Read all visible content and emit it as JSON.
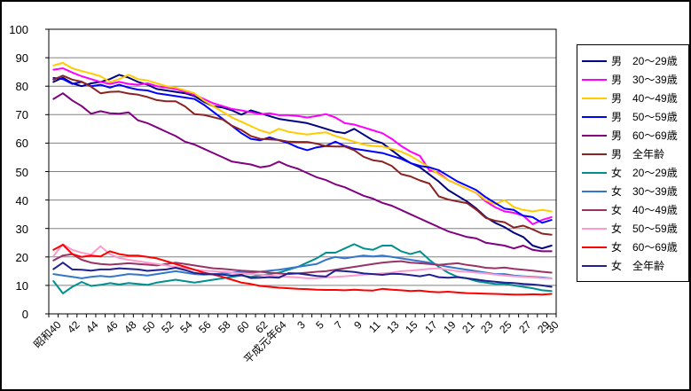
{
  "chart_data": {
    "type": "line",
    "title": "",
    "xlabel": "",
    "ylabel": "",
    "ylim": [
      0,
      100
    ],
    "grid": true,
    "legend_position": "right",
    "years": [
      1965,
      1966,
      1967,
      1968,
      1969,
      1970,
      1971,
      1972,
      1973,
      1974,
      1975,
      1976,
      1977,
      1978,
      1979,
      1980,
      1981,
      1982,
      1983,
      1984,
      1985,
      1986,
      1987,
      1988,
      1989,
      1990,
      1991,
      1992,
      1993,
      1994,
      1995,
      1996,
      1997,
      1998,
      1999,
      2000,
      2001,
      2002,
      2003,
      2004,
      2005,
      2006,
      2007,
      2008,
      2009,
      2010,
      2011,
      2012,
      2013,
      2014,
      2015,
      2016,
      2017,
      2018
    ],
    "y_axis": {
      "min": 0,
      "max": 100,
      "step": 10,
      "tick_labels": [
        "100",
        "90",
        "80",
        "70",
        "60",
        "50",
        "40",
        "30",
        "20",
        "10",
        "0"
      ]
    },
    "x_axis_tick_labels": [
      {
        "text": "昭和40",
        "index": 0
      },
      {
        "text": "42",
        "index": 2
      },
      {
        "text": "44",
        "index": 4
      },
      {
        "text": "46",
        "index": 6
      },
      {
        "text": "48",
        "index": 8
      },
      {
        "text": "50",
        "index": 10
      },
      {
        "text": "52",
        "index": 12
      },
      {
        "text": "54",
        "index": 14
      },
      {
        "text": "56",
        "index": 16
      },
      {
        "text": "58",
        "index": 18
      },
      {
        "text": "60",
        "index": 20
      },
      {
        "text": "62",
        "index": 22
      },
      {
        "text": "平成元年64",
        "index": 24
      },
      {
        "text": "3",
        "index": 26
      },
      {
        "text": "5",
        "index": 28
      },
      {
        "text": "7",
        "index": 30
      },
      {
        "text": "9",
        "index": 32
      },
      {
        "text": "11",
        "index": 34
      },
      {
        "text": "13",
        "index": 36
      },
      {
        "text": "15",
        "index": 38
      },
      {
        "text": "17",
        "index": 40
      },
      {
        "text": "19",
        "index": 42
      },
      {
        "text": "21",
        "index": 44
      },
      {
        "text": "23",
        "index": 46
      },
      {
        "text": "25",
        "index": 48
      },
      {
        "text": "27",
        "index": 50
      },
      {
        "text": "29",
        "index": 52
      },
      {
        "text": "30",
        "index": 53
      }
    ],
    "series": [
      {
        "id": "male-20s",
        "label": "男　20〜29歳",
        "color": "#000080",
        "values": [
          81.5,
          83.0,
          81.0,
          80.0,
          81.0,
          81.5,
          82.5,
          84.0,
          83.0,
          81.5,
          80.5,
          79.0,
          78.5,
          78.0,
          77.5,
          76.5,
          74.5,
          73.0,
          72.5,
          71.5,
          70.0,
          71.5,
          70.5,
          69.5,
          68.5,
          68.0,
          67.5,
          67.0,
          66.0,
          65.0,
          64.0,
          63.5,
          65.0,
          63.0,
          61.0,
          60.0,
          57.5,
          55.0,
          53.0,
          51.5,
          49.0,
          46.5,
          43.5,
          41.5,
          39.5,
          37.0,
          34.0,
          32.0,
          30.5,
          28.5,
          27.0,
          24.0,
          23.0,
          24.0
        ]
      },
      {
        "id": "male-30s",
        "label": "男　30〜39歳",
        "color": "#FF00FF",
        "values": [
          85.8,
          86.3,
          84.8,
          83.5,
          82.5,
          81.5,
          80.8,
          81.5,
          80.8,
          80.5,
          81.0,
          80.0,
          79.5,
          79.0,
          78.0,
          77.0,
          75.5,
          74.0,
          73.0,
          72.0,
          71.5,
          70.8,
          70.2,
          70.5,
          69.8,
          69.8,
          69.5,
          69.0,
          69.5,
          70.2,
          69.0,
          67.0,
          66.5,
          65.5,
          64.5,
          63.5,
          61.5,
          59.0,
          57.0,
          55.5,
          50.5,
          49.5,
          47.0,
          45.5,
          44.0,
          42.5,
          39.5,
          37.5,
          36.0,
          35.5,
          34.5,
          31.5,
          33.0,
          34.0
        ]
      },
      {
        "id": "male-40s",
        "label": "男　40〜49歳",
        "color": "#FFCC00",
        "values": [
          87.3,
          88.2,
          86.3,
          85.3,
          84.5,
          83.5,
          81.5,
          82.5,
          84.0,
          82.5,
          82.0,
          81.0,
          80.0,
          79.5,
          78.5,
          77.5,
          75.0,
          73.0,
          71.0,
          69.0,
          67.5,
          66.0,
          64.5,
          63.5,
          65.0,
          64.0,
          63.5,
          63.0,
          63.5,
          63.8,
          62.5,
          61.5,
          60.5,
          59.5,
          59.0,
          58.8,
          58.0,
          57.0,
          55.5,
          53.5,
          51.5,
          49.0,
          47.0,
          45.5,
          44.0,
          42.5,
          40.0,
          38.5,
          40.0,
          37.5,
          36.5,
          36.0,
          36.5,
          36.0
        ]
      },
      {
        "id": "male-50s",
        "label": "男　50〜59歳",
        "color": "#0000FF",
        "values": [
          82.9,
          82.5,
          80.8,
          81.5,
          80.0,
          80.5,
          79.5,
          80.5,
          79.5,
          78.8,
          78.5,
          77.5,
          77.0,
          76.5,
          76.0,
          75.5,
          73.5,
          71.0,
          68.5,
          66.0,
          63.5,
          61.5,
          61.0,
          62.0,
          61.0,
          60.0,
          58.5,
          57.5,
          58.5,
          59.0,
          60.5,
          59.0,
          58.0,
          57.5,
          57.0,
          56.5,
          55.5,
          54.5,
          53.0,
          52.0,
          51.5,
          50.5,
          48.5,
          46.5,
          45.0,
          43.5,
          41.0,
          39.0,
          37.0,
          36.5,
          34.5,
          34.0,
          32.0,
          33.0
        ]
      },
      {
        "id": "male-60s",
        "label": "男　60〜69歳",
        "color": "#800080",
        "values": [
          75.5,
          77.5,
          75.0,
          73.0,
          70.3,
          71.2,
          70.5,
          70.3,
          70.8,
          68.0,
          67.0,
          65.5,
          64.0,
          62.5,
          60.5,
          59.5,
          58.0,
          56.5,
          55.0,
          53.5,
          53.0,
          52.5,
          51.5,
          52.0,
          53.5,
          52.0,
          51.0,
          49.5,
          48.0,
          47.0,
          45.5,
          44.5,
          43.0,
          41.5,
          40.5,
          39.0,
          38.0,
          36.5,
          35.0,
          33.5,
          32.0,
          30.5,
          29.0,
          28.0,
          27.0,
          26.5,
          25.0,
          24.5,
          24.0,
          23.0,
          24.0,
          22.5,
          22.0,
          22.0
        ]
      },
      {
        "id": "male-all",
        "label": "男　全年齢",
        "color": "#8B2323",
        "values": [
          82.3,
          83.7,
          82.3,
          81.6,
          79.8,
          77.5,
          78.0,
          78.1,
          77.4,
          77.0,
          76.2,
          75.1,
          74.7,
          74.7,
          72.9,
          70.2,
          69.9,
          69.1,
          68.3,
          66.1,
          64.6,
          62.5,
          61.5,
          61.3,
          61.1,
          60.5,
          60.4,
          60.4,
          59.8,
          58.9,
          58.8,
          58.8,
          57.5,
          55.2,
          54.0,
          53.5,
          52.0,
          49.1,
          48.3,
          46.9,
          45.8,
          41.3,
          40.2,
          39.5,
          38.9,
          36.6,
          33.7,
          32.7,
          32.2,
          30.3,
          31.0,
          29.7,
          28.2,
          27.8
        ]
      },
      {
        "id": "female-20s",
        "label": "女　20〜29歳",
        "color": "#009090",
        "values": [
          11.5,
          7.2,
          9.5,
          11.2,
          9.8,
          10.2,
          10.8,
          10.3,
          10.8,
          10.5,
          10.2,
          11.0,
          11.5,
          12.0,
          11.5,
          11.0,
          11.5,
          12.0,
          12.5,
          13.0,
          13.5,
          13.0,
          13.5,
          14.0,
          14.5,
          15.5,
          16.5,
          18.0,
          19.5,
          21.5,
          21.5,
          23.0,
          24.5,
          23.0,
          22.5,
          24.0,
          24.0,
          22.0,
          21.0,
          22.0,
          19.0,
          16.5,
          14.5,
          13.0,
          12.5,
          11.5,
          11.0,
          10.5,
          10.5,
          10.0,
          9.5,
          9.0,
          8.3,
          8.0
        ]
      },
      {
        "id": "female-30s",
        "label": "女　30〜39歳",
        "color": "#3377CC",
        "values": [
          14.0,
          13.5,
          13.0,
          12.5,
          13.0,
          13.3,
          13.0,
          13.5,
          14.0,
          13.8,
          13.5,
          14.0,
          14.5,
          15.0,
          14.5,
          14.0,
          13.8,
          14.0,
          14.2,
          14.5,
          14.8,
          14.5,
          14.8,
          15.2,
          15.5,
          16.0,
          16.5,
          17.0,
          17.5,
          19.0,
          20.0,
          19.5,
          20.0,
          20.5,
          20.2,
          20.5,
          20.0,
          19.5,
          19.0,
          18.5,
          18.0,
          17.2,
          16.5,
          16.0,
          15.5,
          15.0,
          14.5,
          14.0,
          14.0,
          13.5,
          13.2,
          13.0,
          12.8,
          12.5
        ]
      },
      {
        "id": "female-40s",
        "label": "女　40〜49歳",
        "color": "#993366",
        "values": [
          18.8,
          20.5,
          21.0,
          19.0,
          18.0,
          17.5,
          17.3,
          17.5,
          17.8,
          17.5,
          17.3,
          17.0,
          17.5,
          18.0,
          17.5,
          17.0,
          16.5,
          16.0,
          15.8,
          15.5,
          15.2,
          15.0,
          14.8,
          14.5,
          14.2,
          14.0,
          14.2,
          14.5,
          14.8,
          15.0,
          15.5,
          16.0,
          16.5,
          17.0,
          17.5,
          18.0,
          18.3,
          18.5,
          18.0,
          17.8,
          17.5,
          17.2,
          17.5,
          17.8,
          17.2,
          16.8,
          16.2,
          16.0,
          16.3,
          15.8,
          15.5,
          15.2,
          14.8,
          14.5
        ]
      },
      {
        "id": "female-50s",
        "label": "女　50〜59歳",
        "color": "#FF99CC",
        "values": [
          20.3,
          24.5,
          22.5,
          21.5,
          20.8,
          23.8,
          21.0,
          19.6,
          19.0,
          18.5,
          18.0,
          17.5,
          17.0,
          16.5,
          16.0,
          15.5,
          15.2,
          15.0,
          14.8,
          14.5,
          14.2,
          14.0,
          13.8,
          13.5,
          13.2,
          13.0,
          12.8,
          12.5,
          12.5,
          12.8,
          13.0,
          13.2,
          13.5,
          13.8,
          14.0,
          14.2,
          14.5,
          15.0,
          15.2,
          15.5,
          15.8,
          16.0,
          15.5,
          15.0,
          14.8,
          14.5,
          14.2,
          13.8,
          13.5,
          13.2,
          13.0,
          12.8,
          12.6,
          12.5
        ]
      },
      {
        "id": "female-60s",
        "label": "女　60〜69歳",
        "color": "#FF0000",
        "values": [
          22.5,
          24.3,
          21.0,
          20.0,
          20.5,
          20.2,
          22.0,
          21.0,
          20.5,
          20.5,
          20.0,
          19.5,
          18.5,
          17.5,
          16.5,
          15.5,
          14.5,
          13.8,
          13.0,
          12.0,
          11.0,
          10.5,
          9.8,
          9.5,
          9.2,
          9.0,
          8.8,
          8.7,
          8.5,
          8.4,
          8.4,
          8.3,
          8.5,
          8.3,
          8.2,
          8.8,
          8.5,
          8.3,
          8.0,
          8.2,
          7.8,
          7.6,
          7.8,
          7.5,
          7.3,
          7.2,
          7.1,
          7.0,
          6.9,
          6.8,
          6.8,
          6.9,
          6.8,
          7.0
        ]
      },
      {
        "id": "female-all",
        "label": "女　全年齢",
        "color": "#202090",
        "values": [
          15.7,
          18.0,
          15.6,
          15.5,
          15.2,
          15.6,
          15.6,
          16.0,
          15.8,
          15.6,
          15.1,
          15.4,
          15.6,
          16.2,
          15.4,
          14.4,
          14.0,
          13.9,
          13.8,
          13.5,
          13.7,
          12.6,
          12.7,
          12.9,
          12.7,
          14.3,
          14.2,
          13.8,
          13.3,
          13.1,
          15.2,
          15.0,
          14.7,
          14.2,
          14.0,
          13.7,
          14.1,
          14.0,
          13.6,
          13.2,
          13.8,
          12.9,
          12.7,
          12.9,
          12.5,
          12.1,
          11.6,
          11.3,
          11.0,
          10.8,
          10.5,
          10.3,
          10.0,
          9.5
        ]
      }
    ]
  }
}
